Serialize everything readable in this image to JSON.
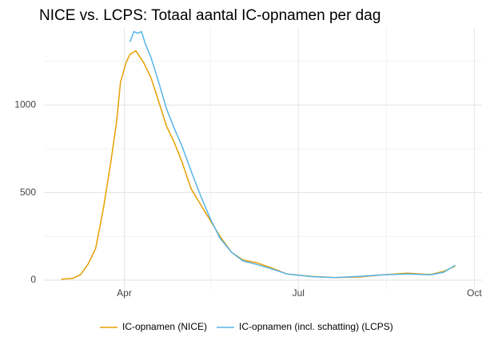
{
  "chart_data": {
    "type": "line",
    "title": "NICE vs. LCPS: Totaal aantal IC-opnamen per dag",
    "series": [
      {
        "name": "IC-opnamen (NICE)",
        "color": "#e69f00",
        "x": [
          59,
          65,
          69,
          73,
          77,
          81,
          85,
          88,
          90,
          93,
          95,
          98,
          102,
          106,
          110,
          114,
          118,
          122,
          127,
          132,
          137,
          142,
          148,
          154,
          161,
          169,
          177,
          190,
          202,
          215,
          227,
          240,
          252,
          259,
          265
        ],
        "values": [
          5,
          10,
          30,
          90,
          180,
          405,
          680,
          905,
          1130,
          1245,
          1290,
          1310,
          1245,
          1155,
          1020,
          880,
          790,
          680,
          520,
          430,
          340,
          250,
          160,
          115,
          100,
          70,
          35,
          22,
          15,
          18,
          30,
          40,
          32,
          50,
          80
        ]
      },
      {
        "name": "IC-opnamen (incl. schatting) (LCPS)",
        "color": "#56b4e9",
        "x": [
          95,
          97,
          99,
          101,
          103,
          106,
          110,
          114,
          118,
          122,
          127,
          132,
          137,
          142,
          148,
          154,
          161,
          169,
          177,
          190,
          202,
          215,
          227,
          240,
          252,
          259,
          265
        ],
        "values": [
          1360,
          1420,
          1410,
          1420,
          1350,
          1270,
          1130,
          980,
          870,
          770,
          620,
          480,
          350,
          240,
          160,
          110,
          90,
          65,
          35,
          20,
          15,
          22,
          30,
          35,
          30,
          45,
          85
        ]
      }
    ],
    "xlim": [
      50,
      279
    ],
    "xticks": [
      {
        "value": 92,
        "label": "Apr"
      },
      {
        "value": 183,
        "label": "Jul"
      },
      {
        "value": 275,
        "label": "Oct"
      }
    ],
    "xminor_ticks": [
      137,
      229
    ],
    "ylim": [
      -55,
      1440
    ],
    "yticks": [
      0,
      500,
      1000
    ],
    "yminor_ticks": [
      250,
      750,
      1250
    ],
    "grid": true,
    "legend": "bottom"
  }
}
